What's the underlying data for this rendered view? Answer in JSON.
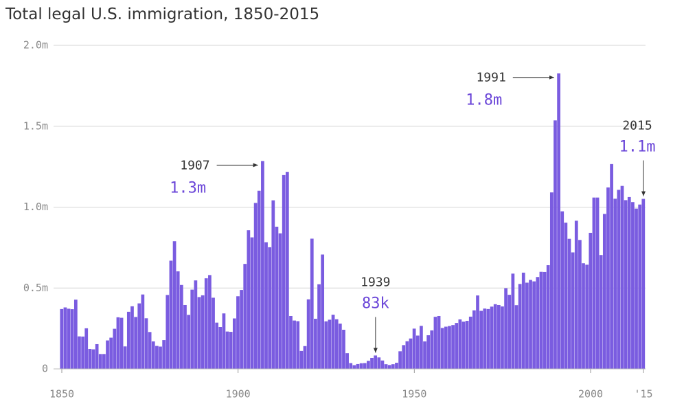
{
  "chart_data": {
    "type": "bar",
    "title": "Total legal U.S. immigration, 1850-2015",
    "color": "#7a5ce0",
    "grid": true,
    "x": [
      1850,
      1851,
      1852,
      1853,
      1854,
      1855,
      1856,
      1857,
      1858,
      1859,
      1860,
      1861,
      1862,
      1863,
      1864,
      1865,
      1866,
      1867,
      1868,
      1869,
      1870,
      1871,
      1872,
      1873,
      1874,
      1875,
      1876,
      1877,
      1878,
      1879,
      1880,
      1881,
      1882,
      1883,
      1884,
      1885,
      1886,
      1887,
      1888,
      1889,
      1890,
      1891,
      1892,
      1893,
      1894,
      1895,
      1896,
      1897,
      1898,
      1899,
      1900,
      1901,
      1902,
      1903,
      1904,
      1905,
      1906,
      1907,
      1908,
      1909,
      1910,
      1911,
      1912,
      1913,
      1914,
      1915,
      1916,
      1917,
      1918,
      1919,
      1920,
      1921,
      1922,
      1923,
      1924,
      1925,
      1926,
      1927,
      1928,
      1929,
      1930,
      1931,
      1932,
      1933,
      1934,
      1935,
      1936,
      1937,
      1938,
      1939,
      1940,
      1941,
      1942,
      1943,
      1944,
      1945,
      1946,
      1947,
      1948,
      1949,
      1950,
      1951,
      1952,
      1953,
      1954,
      1955,
      1956,
      1957,
      1958,
      1959,
      1960,
      1961,
      1962,
      1963,
      1964,
      1965,
      1966,
      1967,
      1968,
      1969,
      1970,
      1971,
      1972,
      1973,
      1974,
      1975,
      1976,
      1977,
      1978,
      1979,
      1980,
      1981,
      1982,
      1983,
      1984,
      1985,
      1986,
      1987,
      1988,
      1989,
      1990,
      1991,
      1992,
      1993,
      1994,
      1995,
      1996,
      1997,
      1998,
      1999,
      2000,
      2001,
      2002,
      2003,
      2004,
      2005,
      2006,
      2007,
      2008,
      2009,
      2010,
      2011,
      2012,
      2013,
      2014,
      2015
    ],
    "values": [
      0.37,
      0.38,
      0.372,
      0.369,
      0.428,
      0.201,
      0.2,
      0.251,
      0.123,
      0.121,
      0.153,
      0.092,
      0.092,
      0.176,
      0.193,
      0.248,
      0.319,
      0.316,
      0.139,
      0.353,
      0.387,
      0.321,
      0.405,
      0.46,
      0.313,
      0.228,
      0.17,
      0.142,
      0.138,
      0.178,
      0.457,
      0.669,
      0.789,
      0.603,
      0.519,
      0.395,
      0.334,
      0.49,
      0.547,
      0.444,
      0.455,
      0.56,
      0.58,
      0.44,
      0.286,
      0.259,
      0.343,
      0.231,
      0.229,
      0.312,
      0.449,
      0.488,
      0.649,
      0.857,
      0.813,
      1.026,
      1.101,
      1.285,
      0.783,
      0.752,
      1.042,
      0.879,
      0.838,
      1.198,
      1.218,
      0.327,
      0.299,
      0.295,
      0.111,
      0.141,
      0.43,
      0.805,
      0.31,
      0.523,
      0.707,
      0.294,
      0.304,
      0.335,
      0.307,
      0.28,
      0.242,
      0.097,
      0.036,
      0.023,
      0.03,
      0.035,
      0.036,
      0.05,
      0.068,
      0.083,
      0.071,
      0.052,
      0.029,
      0.024,
      0.029,
      0.038,
      0.109,
      0.147,
      0.171,
      0.188,
      0.249,
      0.206,
      0.266,
      0.17,
      0.208,
      0.238,
      0.322,
      0.327,
      0.253,
      0.261,
      0.265,
      0.271,
      0.284,
      0.306,
      0.292,
      0.297,
      0.323,
      0.362,
      0.454,
      0.359,
      0.373,
      0.37,
      0.385,
      0.4,
      0.395,
      0.386,
      0.499,
      0.458,
      0.589,
      0.394,
      0.525,
      0.595,
      0.533,
      0.55,
      0.541,
      0.568,
      0.6,
      0.599,
      0.641,
      1.091,
      1.536,
      1.827,
      0.974,
      0.904,
      0.804,
      0.72,
      0.916,
      0.797,
      0.653,
      0.644,
      0.841,
      1.059,
      1.059,
      0.704,
      0.958,
      1.122,
      1.266,
      1.052,
      1.107,
      1.131,
      1.043,
      1.062,
      1.031,
      0.991,
      1.016,
      1.051
    ],
    "xlim": [
      1850,
      2015
    ],
    "xticks": [
      1850,
      1900,
      1950,
      2000,
      {
        "value": 2015,
        "label": "'15"
      }
    ],
    "ylim": [
      0,
      2.0
    ],
    "yticks": [
      0,
      {
        "value": 0.5,
        "label": "0.5m"
      },
      {
        "value": 1.0,
        "label": "1.0m"
      },
      {
        "value": 1.5,
        "label": "1.5m"
      },
      {
        "value": 2.0,
        "label": "2.0m"
      }
    ],
    "annotations": [
      {
        "x": 1907,
        "value_label": "1.3m"
      },
      {
        "x": 1991,
        "value_label": "1.8m"
      },
      {
        "x": 1939,
        "value_label": "83k"
      },
      {
        "x": 2015,
        "value_label": "1.1m"
      }
    ]
  }
}
